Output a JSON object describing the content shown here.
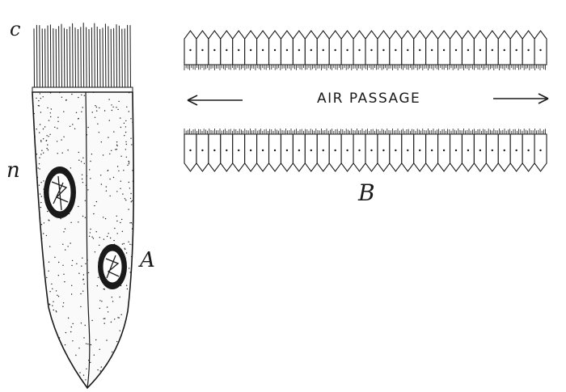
{
  "labels": {
    "cilia": "c",
    "nucleus": "n",
    "cell_A": "A",
    "figure_B": "B",
    "air_passage": "AIR PASSAGE"
  },
  "colors": {
    "ink": "#1a1a1a",
    "paper": "#ffffff"
  },
  "figure_b": {
    "top_row_cells": 30,
    "bottom_row_cells": 30
  }
}
